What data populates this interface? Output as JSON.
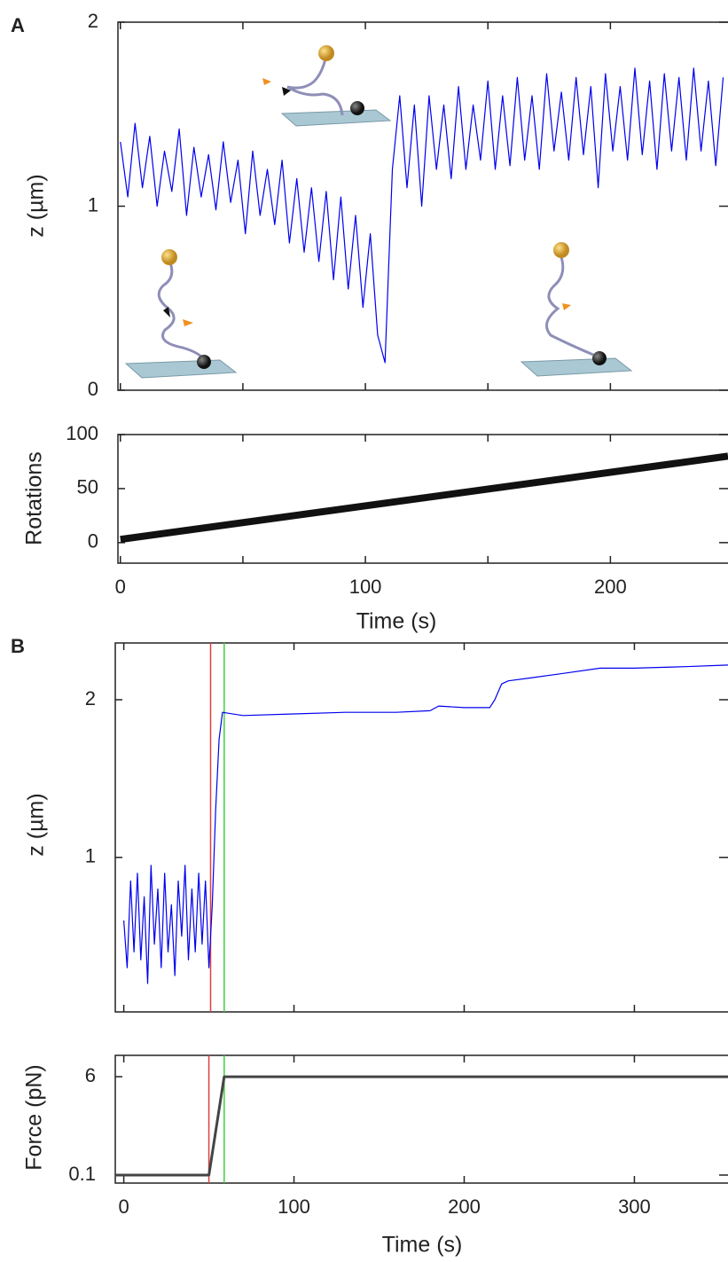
{
  "chart_data": [
    {
      "type": "line",
      "panel": "A",
      "y_label": "z (µm)",
      "color": "#0000ee",
      "line_width": 1.2,
      "x": [
        0,
        3,
        6,
        9,
        12,
        15,
        18,
        21,
        24,
        27,
        30,
        33,
        36,
        39,
        42,
        45,
        48,
        51,
        54,
        57,
        60,
        63,
        66,
        69,
        72,
        75,
        78,
        81,
        84,
        87,
        90,
        93,
        96,
        99,
        102,
        105,
        108,
        111,
        114,
        117,
        120,
        123,
        126,
        129,
        132,
        135,
        138,
        141,
        144,
        147,
        150,
        153,
        156,
        159,
        162,
        165,
        168,
        171,
        174,
        177,
        180,
        183,
        186,
        189,
        192,
        195,
        198,
        201,
        204,
        207,
        210,
        213,
        216,
        219,
        222,
        225,
        228,
        231,
        234,
        237,
        240,
        243,
        246
      ],
      "values": [
        1.35,
        1.05,
        1.45,
        1.1,
        1.38,
        1.0,
        1.3,
        1.08,
        1.42,
        0.95,
        1.32,
        1.05,
        1.28,
        0.98,
        1.35,
        1.02,
        1.25,
        0.85,
        1.3,
        0.95,
        1.2,
        0.9,
        1.25,
        0.8,
        1.15,
        0.75,
        1.1,
        0.7,
        1.08,
        0.6,
        1.05,
        0.55,
        0.95,
        0.45,
        0.85,
        0.3,
        0.15,
        1.2,
        1.6,
        1.1,
        1.55,
        1.0,
        1.6,
        1.2,
        1.55,
        1.15,
        1.65,
        1.2,
        1.55,
        1.25,
        1.68,
        1.2,
        1.6,
        1.22,
        1.7,
        1.25,
        1.6,
        1.2,
        1.72,
        1.3,
        1.62,
        1.25,
        1.7,
        1.28,
        1.65,
        1.1,
        1.72,
        1.3,
        1.65,
        1.25,
        1.75,
        1.28,
        1.68,
        1.2,
        1.72,
        1.3,
        1.7,
        1.25,
        1.75,
        1.3,
        1.68,
        1.22,
        1.7
      ],
      "xlim": [
        -1,
        248
      ],
      "ylim": [
        0,
        2
      ],
      "xticks": [
        0,
        50,
        100,
        150,
        200
      ],
      "xtick_labels": false,
      "yticks": [
        0,
        1,
        2
      ]
    },
    {
      "type": "line",
      "y_label": "Rotations",
      "x_label": "Time (s)",
      "color": "#111111",
      "line_width": 8,
      "x": [
        0,
        248
      ],
      "values": [
        3,
        80
      ],
      "xlim": [
        -1,
        248
      ],
      "ylim": [
        -19,
        100
      ],
      "xticks": [
        0,
        100,
        200
      ],
      "minor_xticks": [
        50,
        150
      ],
      "xtick_labels": true,
      "yticks": [
        0,
        50,
        100
      ]
    },
    {
      "type": "line",
      "panel": "B",
      "y_label": "z (µm)",
      "color": "#0000ee",
      "line_width": 1.2,
      "x": [
        0,
        2,
        4,
        6,
        8,
        10,
        12,
        14,
        16,
        18,
        20,
        22,
        24,
        26,
        28,
        30,
        32,
        34,
        36,
        38,
        40,
        42,
        44,
        46,
        48,
        50,
        52,
        54,
        56,
        58,
        70,
        100,
        130,
        160,
        180,
        185,
        200,
        215,
        218,
        222,
        226,
        240,
        260,
        280,
        300,
        330,
        355
      ],
      "values": [
        0.6,
        0.3,
        0.85,
        0.4,
        0.9,
        0.35,
        0.75,
        0.2,
        0.95,
        0.45,
        0.8,
        0.3,
        0.9,
        0.4,
        0.7,
        0.25,
        0.85,
        0.5,
        0.95,
        0.35,
        0.8,
        0.4,
        0.9,
        0.45,
        0.85,
        0.3,
        0.7,
        1.3,
        1.75,
        1.92,
        1.9,
        1.91,
        1.92,
        1.92,
        1.93,
        1.96,
        1.95,
        1.95,
        2.0,
        2.1,
        2.12,
        2.14,
        2.17,
        2.2,
        2.2,
        2.21,
        2.22
      ],
      "xlim": [
        -5,
        355
      ],
      "ylim": [
        0.02,
        2.36
      ],
      "xticks": [
        0,
        100,
        200,
        300
      ],
      "xtick_labels": false,
      "yticks": [
        1,
        2
      ],
      "vlines": [
        {
          "x": 51,
          "color": "#e04040"
        },
        {
          "x": 59,
          "color": "#40d040"
        }
      ]
    },
    {
      "type": "line",
      "y_label": "Force (pN)",
      "x_label": "Time (s)",
      "color": "#444444",
      "line_width": 3,
      "x": [
        -5,
        50,
        59,
        355
      ],
      "values": [
        0.1,
        0.1,
        6,
        6
      ],
      "xlim": [
        -5,
        355
      ],
      "ylim": [
        -0.38,
        7.28
      ],
      "xticks": [
        0,
        100,
        200,
        300
      ],
      "xtick_labels": true,
      "yticks": [
        0.1,
        6
      ],
      "vlines": [
        {
          "x": 50,
          "color": "#e04040"
        },
        {
          "x": 59,
          "color": "#40d040"
        }
      ]
    }
  ]
}
